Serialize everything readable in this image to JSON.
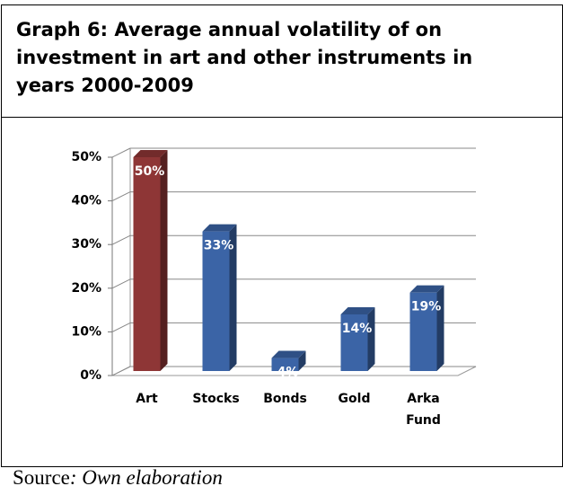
{
  "chart_data": {
    "type": "bar3d",
    "title": "Graph 6: Average annual volatility of on investment in art and other instruments in years 2000-2009",
    "categories": [
      "Art",
      "Stocks",
      "Bonds",
      "Gold",
      "Arka Fund"
    ],
    "values": [
      50,
      33,
      4,
      14,
      19
    ],
    "value_labels": [
      "50%",
      "33%",
      "4%",
      "14%",
      "19%"
    ],
    "colors": [
      "#8e3636",
      "#3b64a6",
      "#3b64a6",
      "#3b64a6",
      "#3b64a6"
    ],
    "ylim": [
      0,
      50
    ],
    "yticks": [
      {
        "value": 0,
        "label": "0%"
      },
      {
        "value": 10,
        "label": "10%"
      },
      {
        "value": 20,
        "label": "20%"
      },
      {
        "value": 30,
        "label": "30%"
      },
      {
        "value": 40,
        "label": "40%"
      },
      {
        "value": 50,
        "label": "50%"
      }
    ],
    "grid": true
  },
  "source": {
    "label": "Source",
    "text": ": Own elaboration"
  }
}
